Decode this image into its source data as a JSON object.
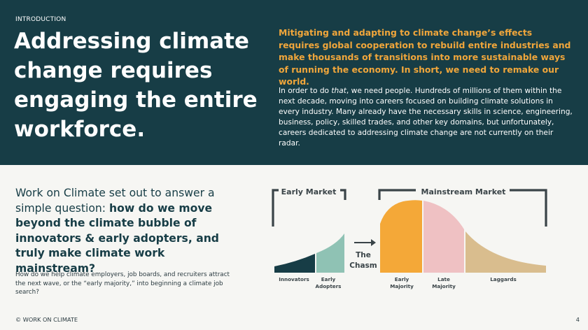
{
  "section_label": "INTRODUCTION",
  "headline": "Addressing climate change requires engaging the entire workforce.",
  "lead_paragraph": "Mitigating and adapting to climate change’s effects requires global cooperation to rebuild entire industries and make thousands of transitions into more sustainable ways of running the economy. In short, we need to remake our world.",
  "body_paragraph": {
    "before": "In order to do ",
    "emphasis": "that",
    "after": ", we need people. Hundreds of millions of them within the next decade, moving into careers focused on building climate solutions in every industry. Many already have the necessary skills in science, engineering, business, policy, skilled trades, and other key domains, but unfortunately, careers dedicated to addressing climate change are not currently on their radar."
  },
  "question": {
    "intro": "Work on Climate set out to answer a simple question: ",
    "emphasis": "how do we move beyond the climate bubble of innovators & early adopters, and truly make climate work mainstream?"
  },
  "sub_question": "How do we help climate employers, job boards, and recruiters attract the next wave, or the “early majority,” into beginning a climate job search?",
  "diagram": {
    "early_market_label": "Early Market",
    "mainstream_market_label": "Mainstream Market",
    "chasm_label_line1": "The",
    "chasm_label_line2": "Chasm",
    "segments": [
      {
        "line1": "Innovators",
        "line2": ""
      },
      {
        "line1": "Early",
        "line2": "Adopters"
      },
      {
        "line1": "Early",
        "line2": "Majority"
      },
      {
        "line1": "Late",
        "line2": "Majority"
      },
      {
        "line1": "Laggards",
        "line2": ""
      }
    ],
    "colors": {
      "innovators": "#173d46",
      "early_adopters": "#8fc2b4",
      "early_majority": "#f4a838",
      "late_majority": "#efc1c3",
      "laggards": "#d9bd8e",
      "bracket": "#3a4448"
    }
  },
  "footer": "© WORK ON CLIMATE",
  "page_number": "4",
  "colors": {
    "dark_teal": "#173d46",
    "accent_orange": "#f0a63b"
  }
}
